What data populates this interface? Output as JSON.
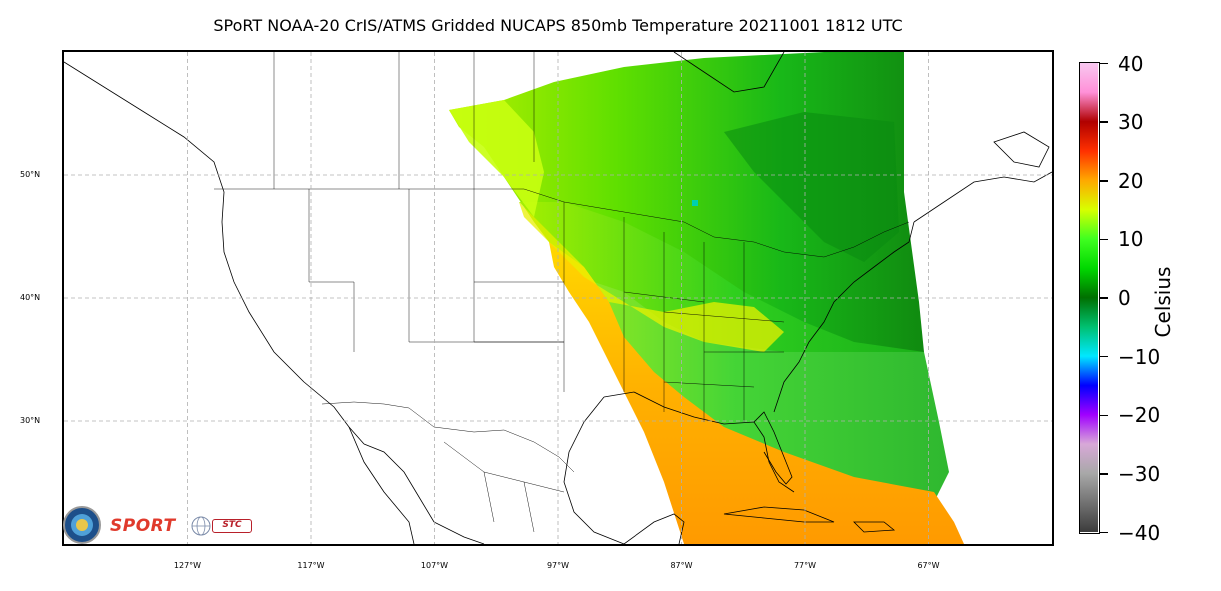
{
  "title": "SPoRT NOAA-20 CrIS/ATMS Gridded NUCAPS 850mb Temperature 20211001 1812 UTC",
  "map": {
    "projection": "equirectangular",
    "lon_range": [
      -137,
      -57
    ],
    "lat_range": [
      20,
      60
    ],
    "gridlines": true,
    "lat_ticks": [
      {
        "value": 50,
        "label": "50°N"
      },
      {
        "value": 40,
        "label": "40°N"
      },
      {
        "value": 30,
        "label": "30°N"
      }
    ],
    "lon_ticks": [
      {
        "value": -127,
        "label": "127°W"
      },
      {
        "value": -117,
        "label": "117°W"
      },
      {
        "value": -107,
        "label": "107°W"
      },
      {
        "value": -97,
        "label": "97°W"
      },
      {
        "value": -87,
        "label": "87°W"
      },
      {
        "value": -77,
        "label": "77°W"
      },
      {
        "value": -67,
        "label": "67°W"
      }
    ],
    "field": "850mb Temperature",
    "field_extent_note_colors": {
      "warm": "#f4a300",
      "mild": "#c8f000",
      "cool": "#1fc41f"
    }
  },
  "colorbar": {
    "label": "Celsius",
    "min": -40,
    "max": 40,
    "ticks": [
      {
        "value": 40,
        "label": "40"
      },
      {
        "value": 30,
        "label": "30"
      },
      {
        "value": 20,
        "label": "20"
      },
      {
        "value": 10,
        "label": "10"
      },
      {
        "value": 0,
        "label": "0"
      },
      {
        "value": -10,
        "label": "−10"
      },
      {
        "value": -20,
        "label": "−20"
      },
      {
        "value": -30,
        "label": "−30"
      },
      {
        "value": -40,
        "label": "−40"
      }
    ],
    "stops": [
      {
        "value": -40,
        "color": "#3c3c3c"
      },
      {
        "value": -30,
        "color": "#a8a8a8"
      },
      {
        "value": -25,
        "color": "#d8a8d8"
      },
      {
        "value": -20,
        "color": "#a000ff"
      },
      {
        "value": -15,
        "color": "#0000ff"
      },
      {
        "value": -10,
        "color": "#00e8ff"
      },
      {
        "value": -5,
        "color": "#00c070"
      },
      {
        "value": 0,
        "color": "#007000"
      },
      {
        "value": 5,
        "color": "#00d800"
      },
      {
        "value": 10,
        "color": "#40ff20"
      },
      {
        "value": 15,
        "color": "#d8ff00"
      },
      {
        "value": 20,
        "color": "#ffa800"
      },
      {
        "value": 25,
        "color": "#ff3000"
      },
      {
        "value": 30,
        "color": "#b00000"
      },
      {
        "value": 35,
        "color": "#ff90d8"
      },
      {
        "value": 40,
        "color": "#f8c8f0"
      }
    ]
  },
  "logos": {
    "sport_text": "SPORT",
    "stc_text": "STC"
  }
}
